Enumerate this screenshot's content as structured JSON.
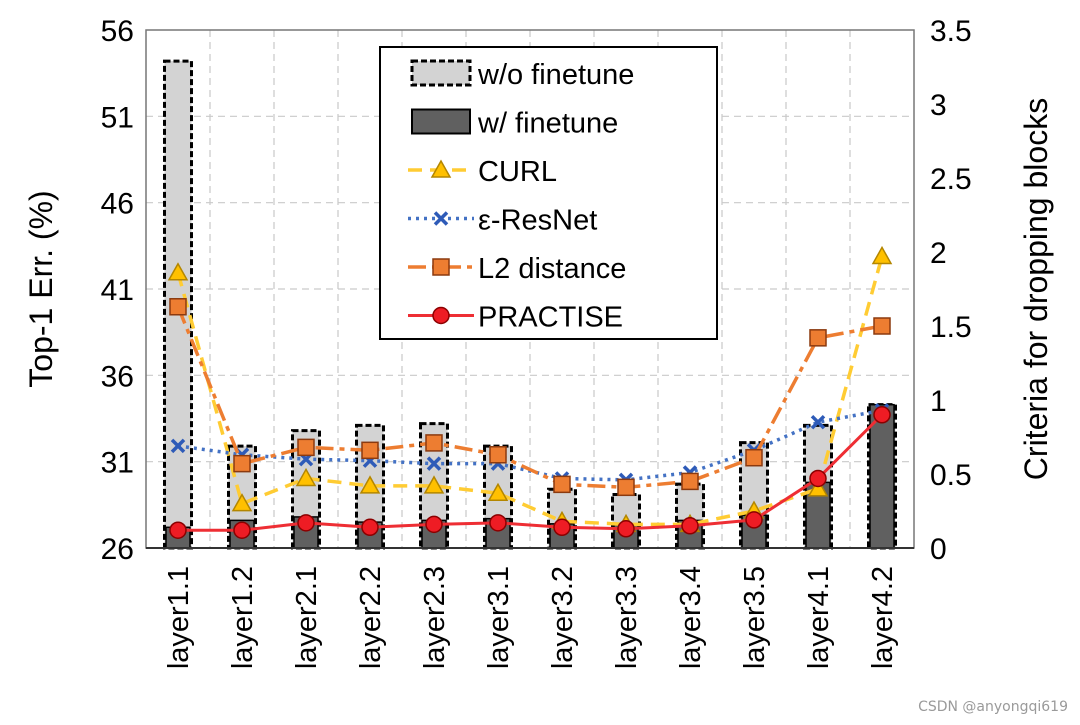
{
  "chart_data": {
    "type": "bar",
    "categories": [
      "layer1.1",
      "layer1.2",
      "layer2.1",
      "layer2.2",
      "layer2.3",
      "layer3.1",
      "layer3.2",
      "layer3.3",
      "layer3.4",
      "layer3.5",
      "layer4.1",
      "layer4.2"
    ],
    "left_axis": {
      "label": "Top-1 Err. (%)",
      "ylim": [
        26,
        56
      ],
      "ticks": [
        "26",
        "31",
        "36",
        "41",
        "46",
        "51",
        "56"
      ]
    },
    "right_axis": {
      "label": "Criteria for dropping blocks",
      "ylim": [
        0,
        3.5
      ],
      "ticks": [
        "0",
        "0.5",
        "1",
        "1.5",
        "2",
        "2.5",
        "3",
        "3.5"
      ]
    },
    "bar_series": [
      {
        "name": "w/o finetune",
        "axis": "left",
        "values": [
          54.2,
          31.9,
          32.8,
          33.1,
          33.2,
          31.9,
          29.4,
          29.1,
          29.7,
          32.1,
          33.1,
          34.3
        ]
      },
      {
        "name": "w/ finetune",
        "axis": "left",
        "values": [
          27.2,
          27.6,
          27.8,
          27.5,
          27.6,
          27.7,
          27.4,
          27.4,
          27.6,
          27.9,
          29.8,
          34.3
        ]
      }
    ],
    "line_series": [
      {
        "name": "CURL",
        "axis": "right",
        "marker": "triangle",
        "dash": "dash",
        "color": "#FFCC33",
        "values": [
          1.86,
          0.3,
          0.47,
          0.42,
          0.42,
          0.37,
          0.18,
          0.16,
          0.16,
          0.25,
          0.4,
          1.97
        ]
      },
      {
        "name": "ε-ResNet",
        "axis": "right",
        "marker": "x",
        "dash": "dot",
        "color": "#4472C4",
        "values": [
          0.69,
          0.63,
          0.6,
          0.59,
          0.57,
          0.57,
          0.47,
          0.46,
          0.51,
          0.66,
          0.85,
          0.93
        ]
      },
      {
        "name": "L2 distance",
        "axis": "right",
        "marker": "square",
        "dash": "dashdot",
        "color": "#ED7D31",
        "values": [
          1.63,
          0.57,
          0.68,
          0.66,
          0.71,
          0.63,
          0.43,
          0.41,
          0.45,
          0.61,
          1.42,
          1.5
        ]
      },
      {
        "name": "PRACTISE",
        "axis": "right",
        "marker": "circle",
        "dash": "solid",
        "color": "#EE2E34",
        "values": [
          0.12,
          0.12,
          0.17,
          0.14,
          0.16,
          0.17,
          0.14,
          0.13,
          0.15,
          0.19,
          0.47,
          0.9
        ]
      }
    ],
    "legend_position": "top-right",
    "grid": true
  },
  "watermark": "CSDN @anyongqi619"
}
